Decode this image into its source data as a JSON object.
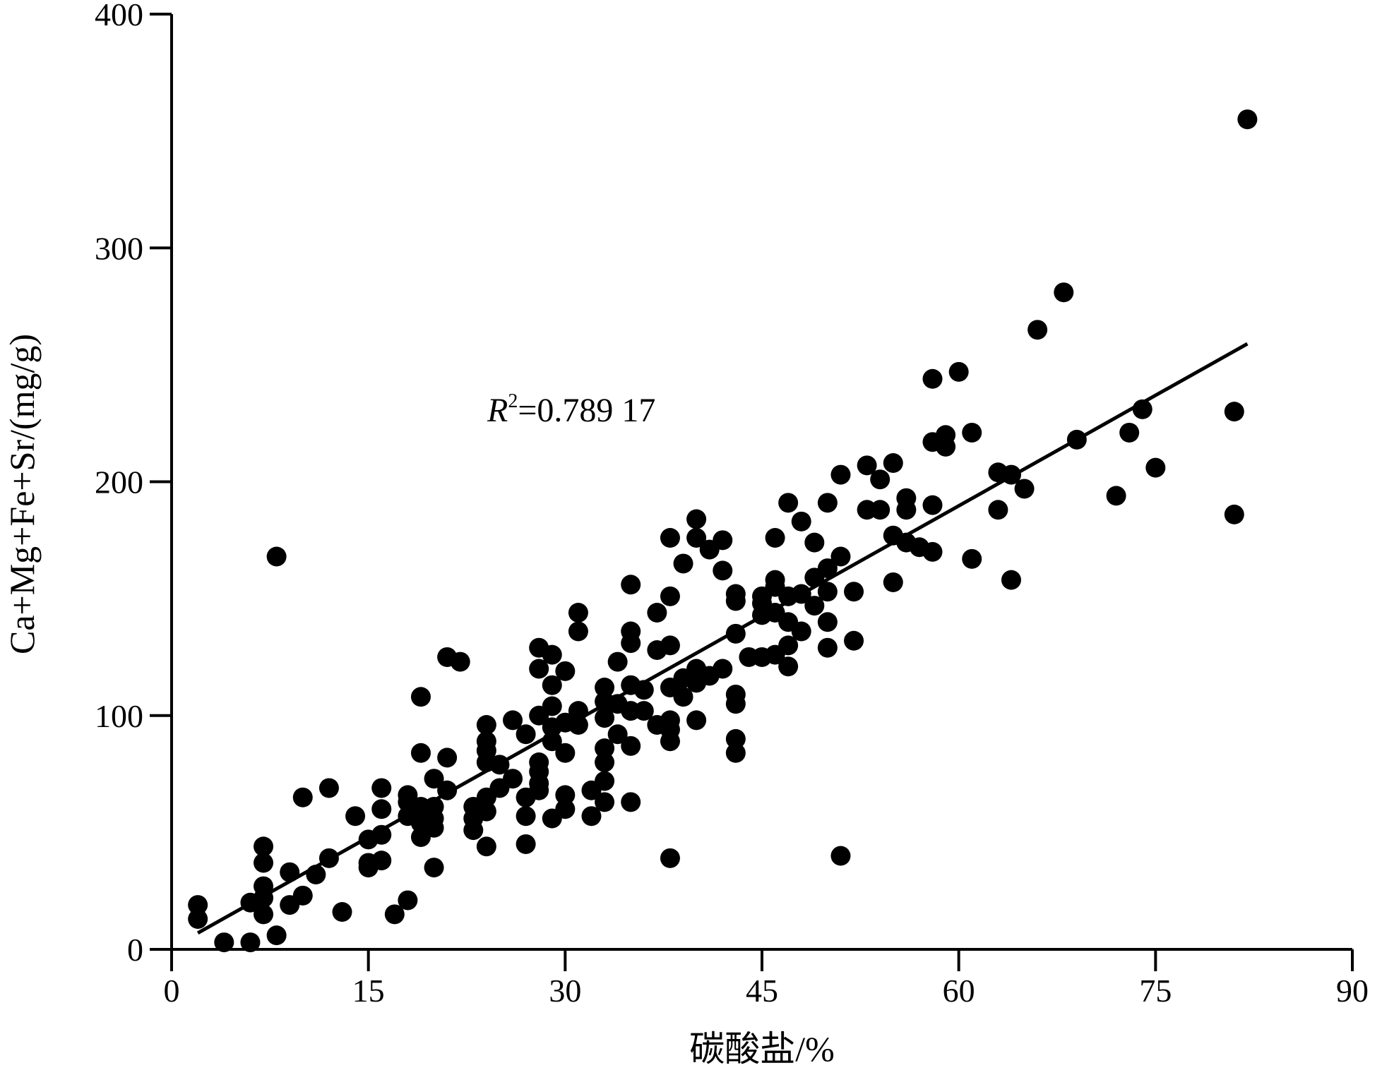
{
  "chart_data": {
    "type": "scatter",
    "xlabel": "碳酸盐/%",
    "ylabel": "Ca+Mg+Fe+Sr/(mg/g)",
    "xlim": [
      0,
      90
    ],
    "ylim": [
      0,
      400
    ],
    "x_ticks": [
      0,
      15,
      30,
      45,
      60,
      75,
      90
    ],
    "y_ticks": [
      0,
      100,
      200,
      300,
      400
    ],
    "grid": false,
    "colors": {
      "marker": "#000000",
      "line": "#000000",
      "axis": "#000000"
    },
    "series": [
      {
        "points": [
          [
            2,
            19
          ],
          [
            2,
            13
          ],
          [
            4,
            3
          ],
          [
            6,
            3
          ],
          [
            6,
            20
          ],
          [
            7,
            44
          ],
          [
            7,
            37
          ],
          [
            7,
            27
          ],
          [
            7,
            22
          ],
          [
            7,
            15
          ],
          [
            8,
            6
          ],
          [
            8,
            168
          ],
          [
            9,
            33
          ],
          [
            9,
            19
          ],
          [
            10,
            65
          ],
          [
            10,
            23
          ],
          [
            11,
            32
          ],
          [
            12,
            69
          ],
          [
            12,
            39
          ],
          [
            13,
            16
          ],
          [
            14,
            57
          ],
          [
            15,
            47
          ],
          [
            15,
            37
          ],
          [
            15,
            35
          ],
          [
            16,
            69
          ],
          [
            16,
            60
          ],
          [
            16,
            49
          ],
          [
            16,
            38
          ],
          [
            17,
            15
          ],
          [
            18,
            21
          ],
          [
            18,
            66
          ],
          [
            18,
            63
          ],
          [
            18,
            57
          ],
          [
            19,
            108
          ],
          [
            19,
            84
          ],
          [
            19,
            61
          ],
          [
            19,
            54
          ],
          [
            19,
            48
          ],
          [
            20,
            73
          ],
          [
            20,
            61
          ],
          [
            20,
            56
          ],
          [
            20,
            52
          ],
          [
            20,
            35
          ],
          [
            21,
            82
          ],
          [
            21,
            68
          ],
          [
            21,
            125
          ],
          [
            22,
            123
          ],
          [
            23,
            61
          ],
          [
            23,
            56
          ],
          [
            23,
            51
          ],
          [
            24,
            96
          ],
          [
            24,
            89
          ],
          [
            24,
            85
          ],
          [
            24,
            80
          ],
          [
            24,
            65
          ],
          [
            24,
            59
          ],
          [
            24,
            44
          ],
          [
            25,
            79
          ],
          [
            25,
            69
          ],
          [
            26,
            98
          ],
          [
            26,
            73
          ],
          [
            27,
            92
          ],
          [
            27,
            65
          ],
          [
            27,
            57
          ],
          [
            27,
            45
          ],
          [
            28,
            129
          ],
          [
            28,
            120
          ],
          [
            28,
            100
          ],
          [
            28,
            80
          ],
          [
            28,
            76
          ],
          [
            28,
            71
          ],
          [
            28,
            68
          ],
          [
            29,
            126
          ],
          [
            29,
            113
          ],
          [
            29,
            104
          ],
          [
            29,
            95
          ],
          [
            29,
            89
          ],
          [
            29,
            56
          ],
          [
            30,
            119
          ],
          [
            30,
            97
          ],
          [
            30,
            84
          ],
          [
            30,
            66
          ],
          [
            30,
            60
          ],
          [
            31,
            144
          ],
          [
            31,
            136
          ],
          [
            31,
            102
          ],
          [
            31,
            96
          ],
          [
            32,
            68
          ],
          [
            32,
            57
          ],
          [
            33,
            112
          ],
          [
            33,
            106
          ],
          [
            33,
            99
          ],
          [
            33,
            86
          ],
          [
            33,
            80
          ],
          [
            33,
            72
          ],
          [
            33,
            63
          ],
          [
            34,
            123
          ],
          [
            34,
            105
          ],
          [
            34,
            92
          ],
          [
            35,
            156
          ],
          [
            35,
            136
          ],
          [
            35,
            131
          ],
          [
            35,
            113
          ],
          [
            35,
            102
          ],
          [
            35,
            87
          ],
          [
            35,
            63
          ],
          [
            36,
            111
          ],
          [
            36,
            102
          ],
          [
            37,
            144
          ],
          [
            37,
            128
          ],
          [
            37,
            96
          ],
          [
            38,
            176
          ],
          [
            38,
            151
          ],
          [
            38,
            130
          ],
          [
            38,
            112
          ],
          [
            38,
            98
          ],
          [
            38,
            94
          ],
          [
            38,
            89
          ],
          [
            38,
            39
          ],
          [
            39,
            165
          ],
          [
            39,
            116
          ],
          [
            39,
            108
          ],
          [
            40,
            184
          ],
          [
            40,
            176
          ],
          [
            40,
            120
          ],
          [
            40,
            114
          ],
          [
            40,
            98
          ],
          [
            41,
            171
          ],
          [
            41,
            117
          ],
          [
            42,
            175
          ],
          [
            42,
            162
          ],
          [
            42,
            120
          ],
          [
            43,
            152
          ],
          [
            43,
            149
          ],
          [
            43,
            135
          ],
          [
            43,
            109
          ],
          [
            43,
            105
          ],
          [
            43,
            90
          ],
          [
            43,
            84
          ],
          [
            44,
            125
          ],
          [
            45,
            151
          ],
          [
            45,
            148
          ],
          [
            45,
            143
          ],
          [
            45,
            125
          ],
          [
            46,
            176
          ],
          [
            46,
            158
          ],
          [
            46,
            155
          ],
          [
            46,
            144
          ],
          [
            46,
            126
          ],
          [
            47,
            191
          ],
          [
            47,
            151
          ],
          [
            47,
            140
          ],
          [
            47,
            130
          ],
          [
            47,
            121
          ],
          [
            48,
            183
          ],
          [
            48,
            152
          ],
          [
            48,
            136
          ],
          [
            49,
            174
          ],
          [
            49,
            159
          ],
          [
            49,
            147
          ],
          [
            50,
            191
          ],
          [
            50,
            163
          ],
          [
            50,
            153
          ],
          [
            50,
            140
          ],
          [
            50,
            129
          ],
          [
            51,
            203
          ],
          [
            51,
            168
          ],
          [
            51,
            40
          ],
          [
            52,
            153
          ],
          [
            52,
            132
          ],
          [
            53,
            207
          ],
          [
            53,
            188
          ],
          [
            54,
            201
          ],
          [
            54,
            188
          ],
          [
            55,
            208
          ],
          [
            55,
            177
          ],
          [
            55,
            157
          ],
          [
            56,
            193
          ],
          [
            56,
            188
          ],
          [
            56,
            174
          ],
          [
            57,
            172
          ],
          [
            58,
            244
          ],
          [
            58,
            217
          ],
          [
            58,
            190
          ],
          [
            58,
            170
          ],
          [
            59,
            220
          ],
          [
            59,
            215
          ],
          [
            60,
            247
          ],
          [
            61,
            221
          ],
          [
            61,
            167
          ],
          [
            63,
            204
          ],
          [
            63,
            188
          ],
          [
            64,
            203
          ],
          [
            64,
            158
          ],
          [
            65,
            197
          ],
          [
            66,
            265
          ],
          [
            68,
            281
          ],
          [
            69,
            218
          ],
          [
            72,
            194
          ],
          [
            73,
            221
          ],
          [
            74,
            231
          ],
          [
            75,
            206
          ],
          [
            81,
            230
          ],
          [
            81,
            186
          ],
          [
            82,
            355
          ]
        ]
      }
    ],
    "trendline": {
      "points": [
        [
          2,
          7
        ],
        [
          82,
          259
        ]
      ]
    },
    "annotation": {
      "variable": "R",
      "exponent": "2",
      "value": "=0.789 17"
    }
  }
}
